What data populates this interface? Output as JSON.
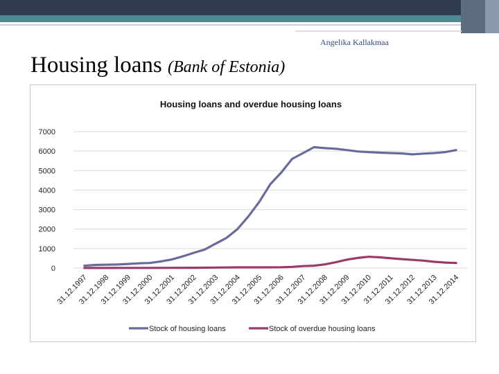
{
  "slide": {
    "author": "Angelika Kallakmaa",
    "title_main": "Housing loans",
    "title_sub": "(Bank of Estonia)"
  },
  "colors": {
    "series1": "#686a9c",
    "series2": "#9a3a6a",
    "header_dark": "#2f3d4f",
    "header_accent": "#4f8a94"
  },
  "chart_data": {
    "type": "line",
    "title": "Housing loans and overdue housing loans",
    "categories": [
      "31.12.1997",
      "31.12.1998",
      "31.12.1999",
      "31.12.2000",
      "31.12.2001",
      "31.12.2002",
      "31.12.2003",
      "31.12.2004",
      "31.12.2005",
      "31.12.2006",
      "31.12.2007",
      "31.12.2008",
      "31.12.2009",
      "31.12.2010",
      "31.12.2011",
      "31.12.2012",
      "31.12.2013",
      "31.12.2014"
    ],
    "yticks": [
      "0",
      "1000",
      "2000",
      "3000",
      "4000",
      "5000",
      "6000",
      "7000"
    ],
    "ylim": [
      0,
      7000
    ],
    "grid": true,
    "legend": "bottom",
    "series": [
      {
        "name": "Stock of housing loans",
        "x": [
          0,
          0.5,
          1,
          1.5,
          2,
          2.5,
          3,
          3.5,
          4,
          4.5,
          5,
          5.5,
          6,
          6.5,
          7,
          7.5,
          8,
          8.5,
          9,
          9.5,
          10,
          10.5,
          11,
          11.5,
          12,
          12.5,
          13,
          13.5,
          14,
          14.5,
          15,
          15.5,
          16,
          16.5,
          17
        ],
        "values": [
          120,
          160,
          170,
          180,
          210,
          240,
          260,
          340,
          440,
          600,
          780,
          950,
          1250,
          1550,
          2000,
          2650,
          3400,
          4300,
          4900,
          5600,
          5900,
          6200,
          6150,
          6120,
          6050,
          5980,
          5950,
          5920,
          5900,
          5880,
          5830,
          5870,
          5900,
          5950,
          6050
        ]
      },
      {
        "name": "Stock of overdue housing loans",
        "x": [
          0,
          1,
          2,
          3,
          4,
          5,
          6,
          7,
          8,
          9,
          9.5,
          10,
          10.5,
          11,
          11.5,
          12,
          12.5,
          13,
          13.5,
          14,
          14.5,
          15,
          15.5,
          16,
          16.5,
          17
        ],
        "values": [
          5,
          5,
          6,
          8,
          10,
          15,
          25,
          35,
          35,
          40,
          60,
          100,
          120,
          190,
          300,
          430,
          520,
          580,
          550,
          500,
          460,
          420,
          380,
          320,
          280,
          260
        ]
      }
    ]
  }
}
